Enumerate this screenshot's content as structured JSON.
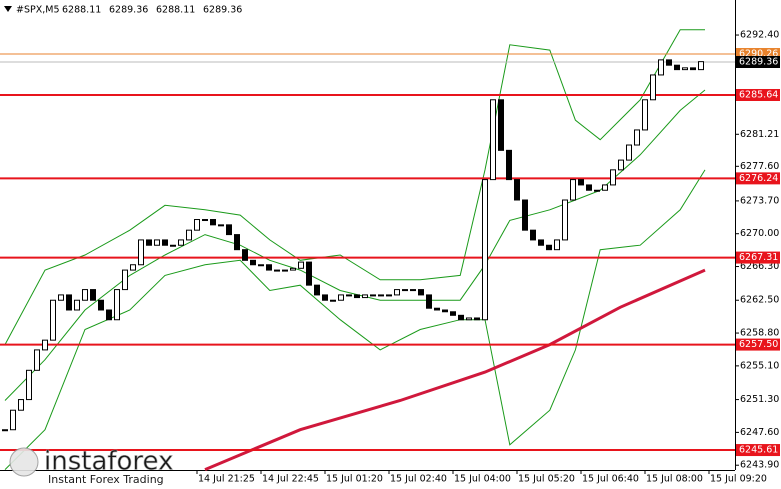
{
  "chart_data": {
    "type": "candlestick",
    "symbol": "#SPX,M5",
    "ohlc": [
      6288.11,
      6289.36,
      6288.11,
      6289.36
    ],
    "close": [
      6247.9,
      6250.1,
      6251.3,
      6254.6,
      6256.9,
      6258.0,
      6262.5,
      6263.1,
      6261.4,
      6262.5,
      6263.7,
      6262.5,
      6261.4,
      6260.3,
      6263.7,
      6265.9,
      6266.5,
      6269.3,
      6268.7,
      6269.3,
      6268.7,
      6268.7,
      6269.3,
      6270.4,
      6271.6,
      6271.6,
      6271.0,
      6271.0,
      6269.9,
      6268.2,
      6267.0,
      6266.5,
      6266.5,
      6265.9,
      6265.9,
      6265.9,
      6266.1,
      6266.8,
      6264.2,
      6263.1,
      6262.5,
      6262.5,
      6263.1,
      6263.1,
      6262.8,
      6263.1,
      6263.1,
      6263.1,
      6263.1,
      6263.7,
      6263.7,
      6263.7,
      6263.1,
      6261.6,
      6261.4,
      6261.2,
      6260.8,
      6260.3,
      6260.5,
      6260.3,
      6276.1,
      6285.1,
      6279.4,
      6276.1,
      6273.8,
      6270.4,
      6269.3,
      6268.7,
      6268.2,
      6269.3,
      6273.8,
      6276.1,
      6275.5,
      6274.9,
      6274.9,
      6275.5,
      6277.2,
      6278.3,
      6280.0,
      6281.7,
      6285.1,
      6287.9,
      6289.6,
      6289.0,
      6288.5,
      6288.7,
      6288.5,
      6289.4
    ],
    "candle_color": "#000000",
    "band_x": [
      0,
      5,
      10,
      15.6,
      20,
      25,
      29.4,
      33.1,
      36.9,
      41.9,
      46.9,
      51.9,
      56.9,
      60,
      63.1,
      68.1,
      71.3,
      74.4,
      79.4,
      84.4,
      87.5
    ],
    "bands": [
      {
        "color": "#1a9a1a",
        "values": [
          6257.5,
          6265.9,
          6267.6,
          6270.4,
          6273.2,
          6272.7,
          6272.1,
          6269.3,
          6267.0,
          6267.6,
          6264.8,
          6264.8,
          6265.3,
          6277.2,
          6291.3,
          6290.7,
          6282.8,
          6280.6,
          6285.1,
          6293.0,
          6293.0
        ]
      },
      {
        "color": "#1a9a1a",
        "values": [
          6251.2,
          6255.8,
          6261.4,
          6265.3,
          6267.6,
          6269.9,
          6268.7,
          6267.0,
          6265.9,
          6263.6,
          6262.5,
          6262.5,
          6262.5,
          6266.5,
          6271.5,
          6272.7,
          6273.8,
          6274.9,
          6278.9,
          6283.9,
          6286.2
        ]
      },
      {
        "color": "#1a9a1a",
        "values": [
          6243.4,
          6247.9,
          6259.2,
          6261.4,
          6265.3,
          6266.5,
          6267.0,
          6263.6,
          6264.2,
          6260.3,
          6256.9,
          6259.2,
          6260.3,
          6260.3,
          6246.2,
          6250.1,
          6256.9,
          6268.2,
          6268.7,
          6272.7,
          6277.2
        ]
      }
    ],
    "ma": {
      "color": "#d0183c",
      "x": [
        25,
        36.9,
        49.4,
        60,
        68.1,
        76.9,
        87.5
      ],
      "values": [
        6243.4,
        6247.9,
        6251.2,
        6254.4,
        6257.5,
        6261.7,
        6265.9
      ]
    },
    "levels": {
      "color": "#e8141c",
      "values": [
        6285.64,
        6276.24,
        6267.31,
        {
          "value": 6257.5,
          "label": "6257.50"
        },
        6245.61
      ]
    },
    "resistance": {
      "color": "#e8822c",
      "value": 6290.26
    },
    "bid": 6289.36,
    "xlim": [
      -0.625,
      91.25
    ],
    "ylim": [
      6243.36,
      6296.35
    ],
    "xticks": [
      {
        "value": 24,
        "label": "14 Jul 21:25"
      },
      {
        "value": 32,
        "label": "14 Jul 22:45"
      },
      {
        "value": 40,
        "label": "15 Jul 01:20"
      },
      {
        "value": 48,
        "label": "15 Jul 02:40"
      },
      {
        "value": 56,
        "label": "15 Jul 04:00"
      },
      {
        "value": 64,
        "label": "15 Jul 05:20"
      },
      {
        "value": 72,
        "label": "15 Jul 06:40"
      },
      {
        "value": 80,
        "label": "15 Jul 08:00"
      },
      {
        "value": 88,
        "label": "15 Jul 09:20"
      }
    ],
    "yticks": [
      {
        "value": 6292.4,
        "label": "6292.40"
      },
      6281.21,
      {
        "value": 6277.6,
        "label": "6277.60"
      },
      {
        "value": 6273.7,
        "label": "6273.70"
      },
      {
        "value": 6270,
        "label": "6270.00"
      },
      {
        "value": 6266.3,
        "label": "6266.30"
      },
      {
        "value": 6262.5,
        "label": "6262.50"
      },
      {
        "value": 6258.8,
        "label": "6258.80"
      },
      {
        "value": 6255.1,
        "label": "6255.10"
      },
      {
        "value": 6251.3,
        "label": "6251.30"
      },
      {
        "value": 6247.6,
        "label": "6247.60"
      },
      {
        "value": 6243.9,
        "label": "6243.90"
      }
    ],
    "watermark": {
      "brand": "instaforex",
      "tagline": "Instant Forex Trading"
    }
  }
}
